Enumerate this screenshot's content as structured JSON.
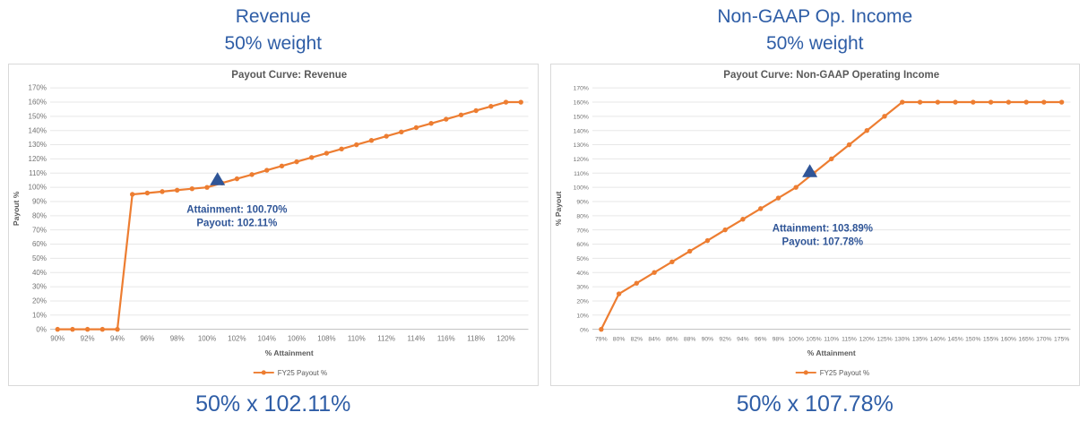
{
  "colors": {
    "heading_blue": "#2E5DA6",
    "annotation_blue": "#2F5597",
    "series_orange": "#ED7D31",
    "chart_title_gray": "#595959",
    "axis_text_gray": "#737373",
    "gridline_gray": "#E7E7E7",
    "axis_line_gray": "#BFBFBF",
    "panel_border_gray": "#D9D9D9"
  },
  "panels": [
    {
      "header_line1": "Revenue",
      "header_line2": "50% weight",
      "caption": "50% x 102.11%"
    },
    {
      "header_line1": "Non-GAAP Op. Income",
      "header_line2": "50% weight",
      "caption": "50% x 107.78%"
    }
  ],
  "chart_data": [
    {
      "type": "line",
      "title": "Payout Curve: Revenue",
      "xlabel": "% Attainment",
      "ylabel": "Payout %",
      "legend": "FY25 Payout %",
      "legend_position": "bottom",
      "grid": true,
      "ylim": [
        0,
        170
      ],
      "x": [
        90,
        91,
        92,
        93,
        94,
        95,
        96,
        97,
        98,
        99,
        100,
        101,
        102,
        103,
        104,
        105,
        106,
        107,
        108,
        109,
        110,
        111,
        112,
        113,
        114,
        115,
        116,
        117,
        118,
        119,
        120,
        121
      ],
      "y": [
        0,
        0,
        0,
        0,
        0,
        95,
        96,
        97,
        98,
        99,
        100,
        103,
        106,
        109,
        112,
        115,
        118,
        121,
        124,
        127,
        130,
        133,
        136,
        139,
        142,
        145,
        148,
        151,
        154,
        157,
        160,
        160
      ],
      "x_tick_values": [
        90,
        92,
        94,
        96,
        98,
        100,
        102,
        104,
        106,
        108,
        110,
        112,
        114,
        116,
        118,
        120
      ],
      "x_tick_labels": [
        "90%",
        "92%",
        "94%",
        "96%",
        "98%",
        "100%",
        "102%",
        "104%",
        "106%",
        "108%",
        "110%",
        "112%",
        "114%",
        "116%",
        "118%",
        "120%"
      ],
      "y_tick_values": [
        0,
        10,
        20,
        30,
        40,
        50,
        60,
        70,
        80,
        90,
        100,
        110,
        120,
        130,
        140,
        150,
        160,
        170
      ],
      "y_tick_labels": [
        "0%",
        "10%",
        "20%",
        "30%",
        "40%",
        "50%",
        "60%",
        "70%",
        "80%",
        "90%",
        "100%",
        "110%",
        "120%",
        "130%",
        "140%",
        "150%",
        "160%",
        "170%"
      ],
      "marker": {
        "shape": "triangle-up",
        "x": 100.7,
        "y": 102.11
      },
      "annotation": {
        "lines": [
          "Attainment: 100.70%",
          "Payout: 102.11%"
        ],
        "x": 102.0,
        "y": 82
      }
    },
    {
      "type": "line",
      "title": "Payout Curve: Non-GAAP Operating Income",
      "xlabel": "% Attainment",
      "ylabel": "% Payout",
      "legend": "FY25 Payout %",
      "legend_position": "bottom",
      "grid": true,
      "ylim": [
        0,
        170
      ],
      "x": [
        79,
        80,
        82,
        84,
        86,
        88,
        90,
        92,
        94,
        96,
        98,
        100,
        105,
        110,
        115,
        120,
        125,
        130,
        135,
        140,
        145,
        150,
        155,
        160,
        165,
        170,
        175
      ],
      "y": [
        0,
        25,
        32.5,
        40,
        47.5,
        55,
        62.5,
        70,
        77.5,
        85,
        92.5,
        100,
        110,
        120,
        130,
        140,
        150,
        160,
        160,
        160,
        160,
        160,
        160,
        160,
        160,
        160,
        160
      ],
      "x_tick_values": [
        79,
        80,
        82,
        84,
        86,
        88,
        90,
        92,
        94,
        96,
        98,
        100,
        105,
        110,
        115,
        120,
        125,
        130,
        135,
        140,
        145,
        150,
        155,
        160,
        165,
        170,
        175
      ],
      "x_tick_labels": [
        "79%",
        "80%",
        "82%",
        "84%",
        "86%",
        "88%",
        "90%",
        "92%",
        "94%",
        "96%",
        "98%",
        "100%",
        "105%",
        "110%",
        "115%",
        "120%",
        "125%",
        "130%",
        "135%",
        "140%",
        "145%",
        "150%",
        "155%",
        "160%",
        "165%",
        "170%",
        "175%"
      ],
      "y_tick_values": [
        0,
        10,
        20,
        30,
        40,
        50,
        60,
        70,
        80,
        90,
        100,
        110,
        120,
        130,
        140,
        150,
        160,
        170
      ],
      "y_tick_labels": [
        "0%",
        "10%",
        "20%",
        "30%",
        "40%",
        "50%",
        "60%",
        "70%",
        "80%",
        "90%",
        "100%",
        "110%",
        "120%",
        "130%",
        "140%",
        "150%",
        "160%",
        "170%"
      ],
      "marker": {
        "shape": "triangle-up",
        "x": 103.89,
        "y": 107.78
      },
      "annotation": {
        "lines": [
          "Attainment: 103.89%",
          "Payout: 107.78%"
        ],
        "x": 107.5,
        "y": 69
      }
    }
  ]
}
